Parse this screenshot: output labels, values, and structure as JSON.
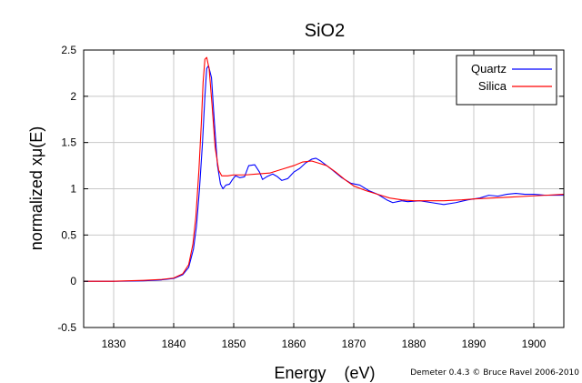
{
  "chart_data": {
    "type": "line",
    "title": "SiO2",
    "xlabel": "Energy    (eV)",
    "ylabel": "normalized xμ(E)",
    "xlim": [
      1825,
      1905
    ],
    "ylim": [
      -0.5,
      2.5
    ],
    "xticks": [
      1830,
      1840,
      1850,
      1860,
      1870,
      1880,
      1890,
      1900
    ],
    "yticks": [
      -0.5,
      0,
      0.5,
      1,
      1.5,
      2,
      2.5
    ],
    "xtick_labels": [
      "1830",
      "1840",
      "1850",
      "1860",
      "1870",
      "1880",
      "1890",
      "1900"
    ],
    "ytick_labels": [
      "-0.5",
      "0",
      "0.5",
      "1",
      "1.5",
      "2",
      "2.5"
    ],
    "grid": true,
    "legend_position": "top-right",
    "series": [
      {
        "name": "Quartz",
        "color": "#0000ff",
        "points": [
          [
            1825,
            0.0
          ],
          [
            1830,
            0.0
          ],
          [
            1835,
            0.005
          ],
          [
            1838,
            0.015
          ],
          [
            1840,
            0.03
          ],
          [
            1841.5,
            0.07
          ],
          [
            1842.5,
            0.15
          ],
          [
            1843.3,
            0.35
          ],
          [
            1843.8,
            0.6
          ],
          [
            1844.3,
            1.0
          ],
          [
            1844.8,
            1.5
          ],
          [
            1845.2,
            2.0
          ],
          [
            1845.5,
            2.3
          ],
          [
            1845.8,
            2.33
          ],
          [
            1846.3,
            2.2
          ],
          [
            1846.8,
            1.7
          ],
          [
            1847.3,
            1.25
          ],
          [
            1847.8,
            1.05
          ],
          [
            1848.2,
            1.0
          ],
          [
            1848.7,
            1.04
          ],
          [
            1849.3,
            1.05
          ],
          [
            1849.8,
            1.1
          ],
          [
            1850.3,
            1.14
          ],
          [
            1851,
            1.12
          ],
          [
            1851.8,
            1.13
          ],
          [
            1852.5,
            1.25
          ],
          [
            1853.5,
            1.26
          ],
          [
            1854.3,
            1.18
          ],
          [
            1854.8,
            1.1
          ],
          [
            1855.5,
            1.13
          ],
          [
            1856.5,
            1.16
          ],
          [
            1857.3,
            1.13
          ],
          [
            1858,
            1.09
          ],
          [
            1859,
            1.11
          ],
          [
            1860,
            1.18
          ],
          [
            1861,
            1.22
          ],
          [
            1862,
            1.28
          ],
          [
            1863,
            1.32
          ],
          [
            1863.7,
            1.33
          ],
          [
            1864.5,
            1.3
          ],
          [
            1865.5,
            1.25
          ],
          [
            1866.5,
            1.2
          ],
          [
            1868,
            1.12
          ],
          [
            1869.5,
            1.06
          ],
          [
            1871,
            1.04
          ],
          [
            1872.5,
            0.98
          ],
          [
            1874,
            0.94
          ],
          [
            1875.5,
            0.88
          ],
          [
            1876.5,
            0.85
          ],
          [
            1878,
            0.87
          ],
          [
            1879,
            0.86
          ],
          [
            1881,
            0.87
          ],
          [
            1883,
            0.85
          ],
          [
            1885,
            0.83
          ],
          [
            1887,
            0.85
          ],
          [
            1889,
            0.88
          ],
          [
            1891,
            0.9
          ],
          [
            1892.5,
            0.93
          ],
          [
            1894,
            0.92
          ],
          [
            1895.5,
            0.94
          ],
          [
            1897,
            0.95
          ],
          [
            1898.5,
            0.94
          ],
          [
            1900,
            0.94
          ],
          [
            1902,
            0.93
          ],
          [
            1905,
            0.93
          ]
        ]
      },
      {
        "name": "Silica",
        "color": "#ff0000",
        "points": [
          [
            1825,
            0.0
          ],
          [
            1830,
            0.0
          ],
          [
            1835,
            0.01
          ],
          [
            1838,
            0.02
          ],
          [
            1840,
            0.035
          ],
          [
            1841.5,
            0.08
          ],
          [
            1842.5,
            0.18
          ],
          [
            1843.2,
            0.4
          ],
          [
            1843.7,
            0.7
          ],
          [
            1844.2,
            1.2
          ],
          [
            1844.6,
            1.7
          ],
          [
            1844.9,
            2.15
          ],
          [
            1845.2,
            2.4
          ],
          [
            1845.5,
            2.42
          ],
          [
            1845.9,
            2.3
          ],
          [
            1846.4,
            1.9
          ],
          [
            1846.9,
            1.45
          ],
          [
            1847.5,
            1.2
          ],
          [
            1848,
            1.14
          ],
          [
            1849,
            1.14
          ],
          [
            1850,
            1.15
          ],
          [
            1852,
            1.15
          ],
          [
            1854,
            1.16
          ],
          [
            1856,
            1.17
          ],
          [
            1858,
            1.21
          ],
          [
            1860,
            1.25
          ],
          [
            1861.5,
            1.29
          ],
          [
            1863,
            1.3
          ],
          [
            1864,
            1.28
          ],
          [
            1865.5,
            1.25
          ],
          [
            1867,
            1.18
          ],
          [
            1868.5,
            1.1
          ],
          [
            1870,
            1.03
          ],
          [
            1872,
            0.98
          ],
          [
            1874,
            0.94
          ],
          [
            1876,
            0.9
          ],
          [
            1878,
            0.88
          ],
          [
            1880,
            0.87
          ],
          [
            1882,
            0.87
          ],
          [
            1885,
            0.87
          ],
          [
            1888,
            0.88
          ],
          [
            1890,
            0.89
          ],
          [
            1893,
            0.9
          ],
          [
            1896,
            0.91
          ],
          [
            1899,
            0.92
          ],
          [
            1902,
            0.93
          ],
          [
            1905,
            0.94
          ]
        ]
      }
    ],
    "credit": "Demeter 0.4.3 © Bruce Ravel 2006-2010"
  }
}
